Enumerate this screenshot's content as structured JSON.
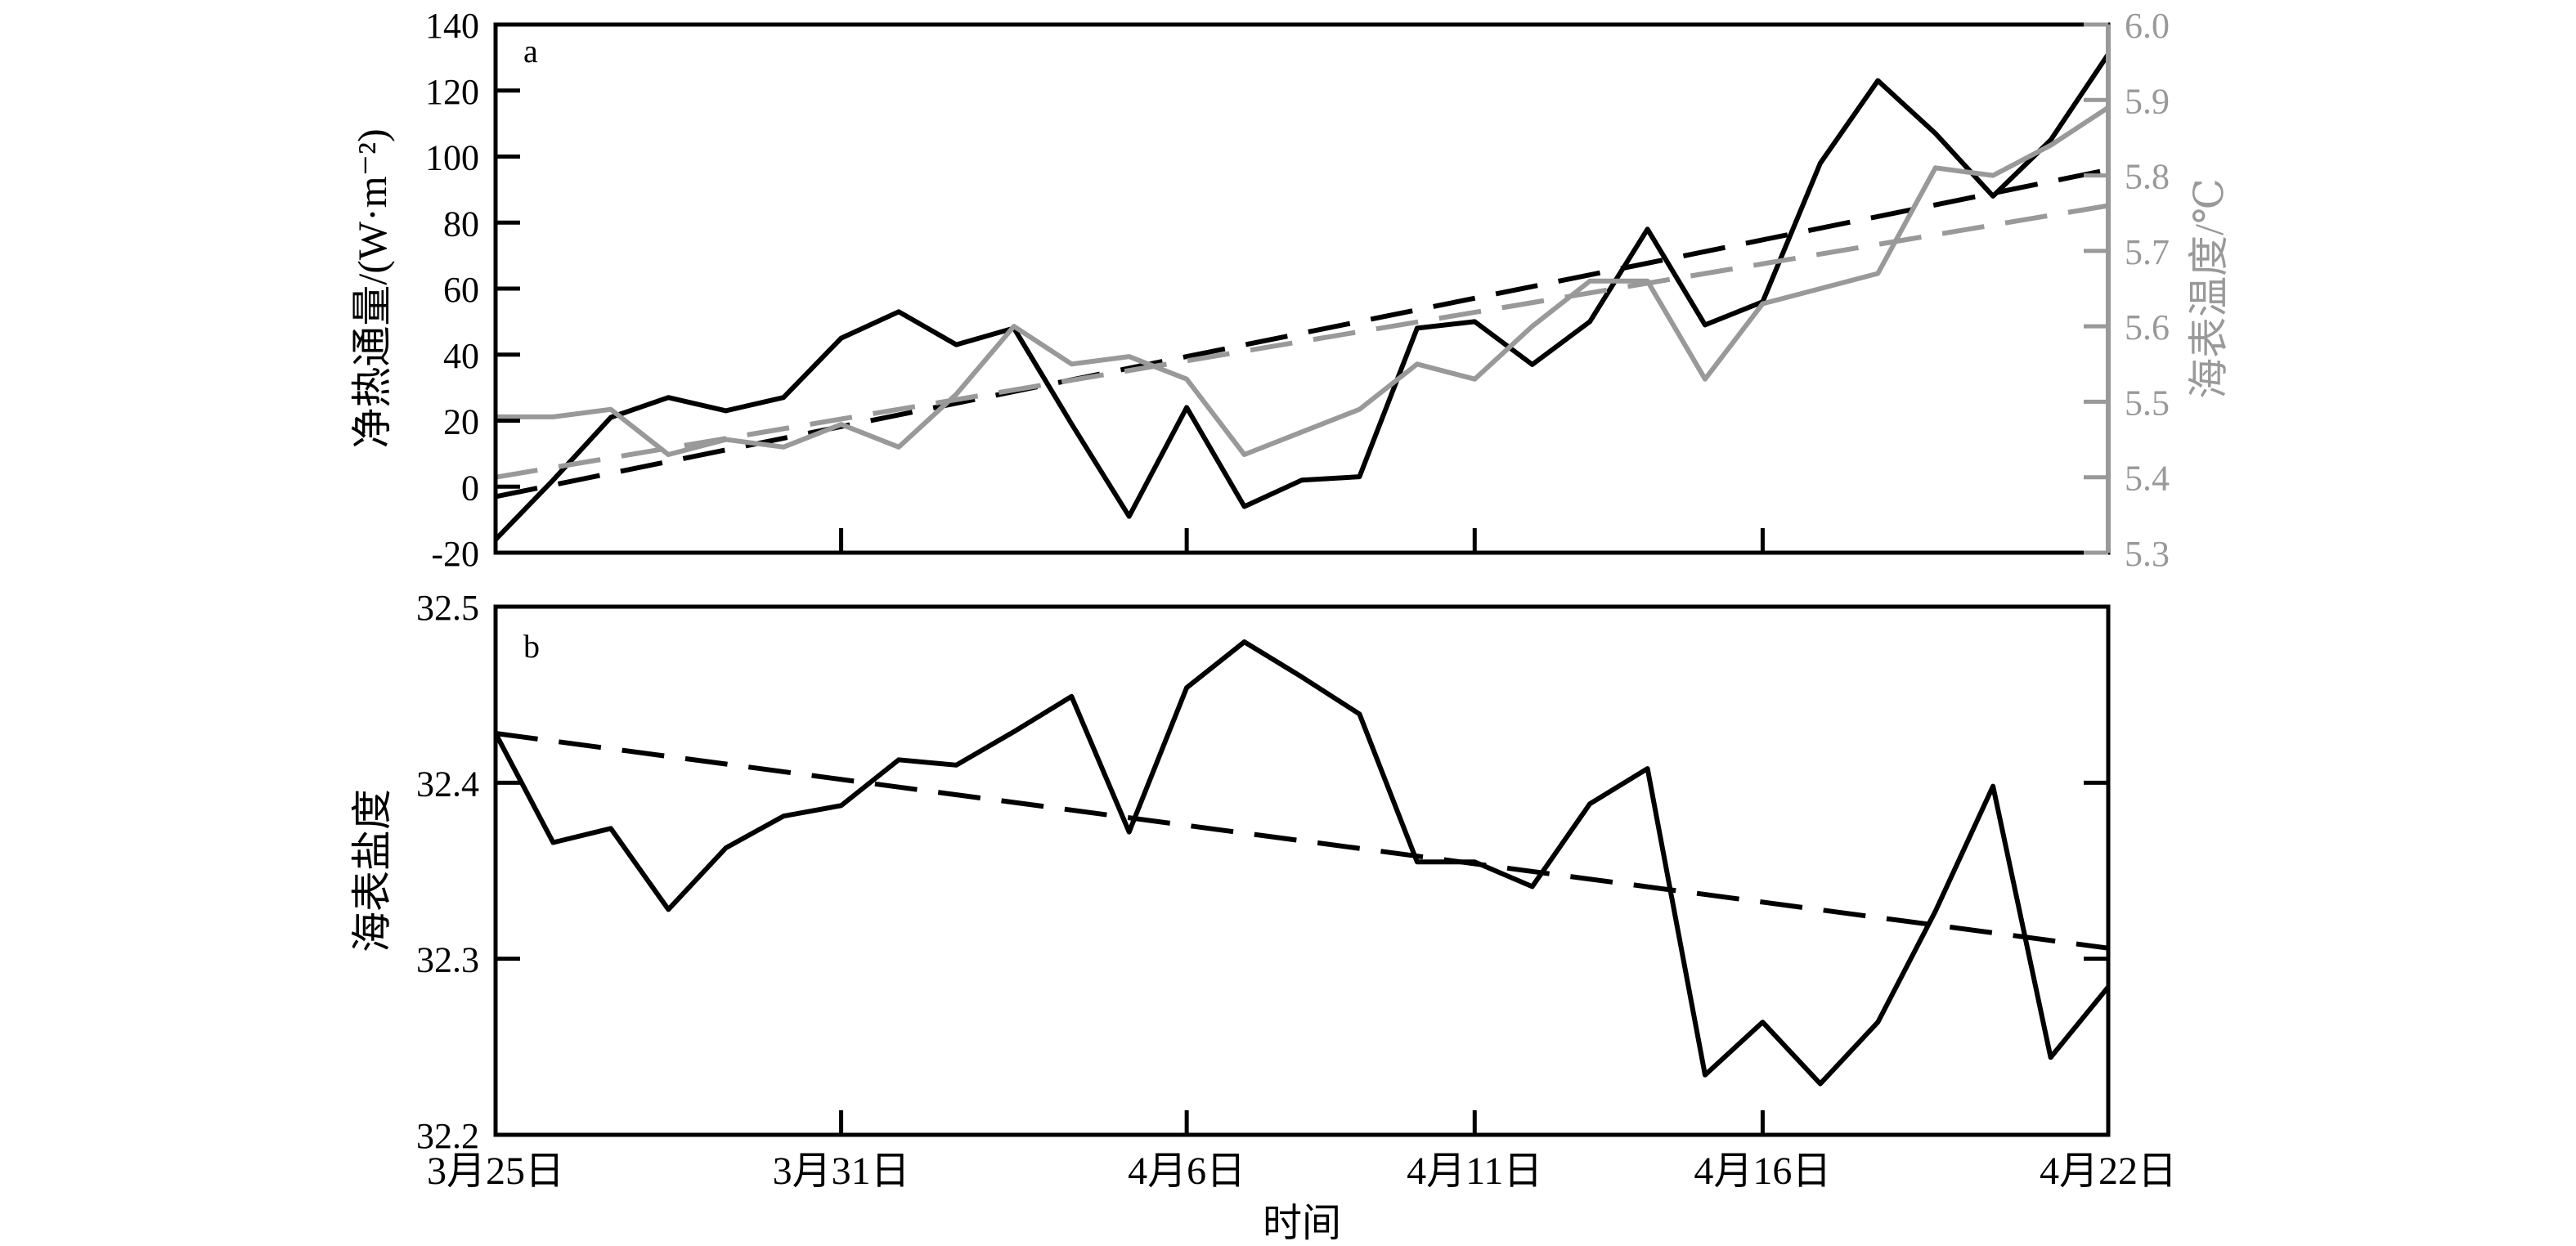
{
  "figure": {
    "xlabel": "时间",
    "x_ticks": [
      "3月25日",
      "3月31日",
      "4月6日",
      "4月11日",
      "4月16日",
      "4月22日"
    ],
    "x_tick_days": [
      0,
      6,
      12,
      17,
      22,
      28
    ]
  },
  "chart_data": [
    {
      "panel_label": "a",
      "type": "line",
      "x_unit": "days since 3月25日 (time axis)",
      "xlim": [
        0,
        28
      ],
      "left_axis": {
        "label": "净热通量/(W·m⁻²)",
        "ylim": [
          -20,
          140
        ],
        "ticks": [
          "-20",
          "0",
          "20",
          "40",
          "60",
          "80",
          "100",
          "120",
          "140"
        ],
        "color": "#000000"
      },
      "right_axis": {
        "label": "海表温度/℃",
        "ylim": [
          5.3,
          6.0
        ],
        "ticks": [
          "5.3",
          "5.4",
          "5.5",
          "5.6",
          "5.7",
          "5.8",
          "5.9",
          "6.0"
        ],
        "color": "#999999"
      },
      "series": [
        {
          "axis": "left",
          "style": "solid",
          "color": "#000000",
          "x": [
            0,
            1,
            2,
            3,
            4,
            5,
            6,
            7,
            8,
            9,
            10,
            11,
            12,
            13,
            14,
            15,
            16,
            17,
            18,
            19,
            20,
            21,
            22,
            23,
            24,
            25,
            26,
            27,
            28
          ],
          "values": [
            -16,
            2,
            21,
            27,
            23,
            27,
            45,
            53,
            43,
            48,
            19,
            -9,
            24,
            -6,
            2,
            3,
            48,
            50,
            37,
            50,
            78,
            49,
            56,
            98,
            123,
            107,
            88,
            105,
            131
          ]
        },
        {
          "axis": "left",
          "style": "dashed",
          "color": "#000000",
          "x": [
            0,
            28
          ],
          "values": [
            -3,
            96
          ]
        },
        {
          "axis": "right",
          "style": "solid",
          "color": "#999999",
          "x": [
            0,
            1,
            2,
            3,
            4,
            5,
            6,
            7,
            8,
            9,
            10,
            11,
            12,
            13,
            14,
            15,
            16,
            17,
            18,
            19,
            20,
            21,
            22,
            23,
            24,
            25,
            26,
            27,
            28
          ],
          "values": [
            5.48,
            5.48,
            5.49,
            5.43,
            5.45,
            5.44,
            5.47,
            5.44,
            5.51,
            5.6,
            5.55,
            5.56,
            5.53,
            5.43,
            5.46,
            5.49,
            5.55,
            5.53,
            5.6,
            5.66,
            5.66,
            5.53,
            5.63,
            5.65,
            5.67,
            5.81,
            5.8,
            5.84,
            5.89
          ]
        },
        {
          "axis": "right",
          "style": "dashed",
          "color": "#999999",
          "x": [
            0,
            28
          ],
          "values": [
            5.4,
            5.76
          ]
        }
      ]
    },
    {
      "panel_label": "b",
      "type": "line",
      "x_unit": "days since 3月25日 (time axis)",
      "xlim": [
        0,
        28
      ],
      "ylabel": "海表盐度",
      "ylim": [
        32.2,
        32.5
      ],
      "y_ticks": [
        "32.2",
        "32.3",
        "32.4",
        "32.5"
      ],
      "series": [
        {
          "style": "solid",
          "color": "#000000",
          "x": [
            0,
            1,
            2,
            3,
            4,
            5,
            6,
            7,
            8,
            9,
            10,
            11,
            12,
            13,
            14,
            15,
            16,
            17,
            18,
            19,
            20,
            21,
            22,
            23,
            24,
            25,
            26,
            27,
            28
          ],
          "values": [
            32.428,
            32.366,
            32.374,
            32.328,
            32.363,
            32.381,
            32.387,
            32.413,
            32.41,
            32.429,
            32.449,
            32.372,
            32.454,
            32.48,
            32.46,
            32.439,
            32.355,
            32.355,
            32.341,
            32.388,
            32.408,
            32.234,
            32.264,
            32.229,
            32.264,
            32.327,
            32.398,
            32.244,
            32.284
          ]
        },
        {
          "style": "dashed",
          "color": "#000000",
          "x": [
            0,
            28
          ],
          "values": [
            32.428,
            32.306
          ]
        }
      ]
    }
  ]
}
